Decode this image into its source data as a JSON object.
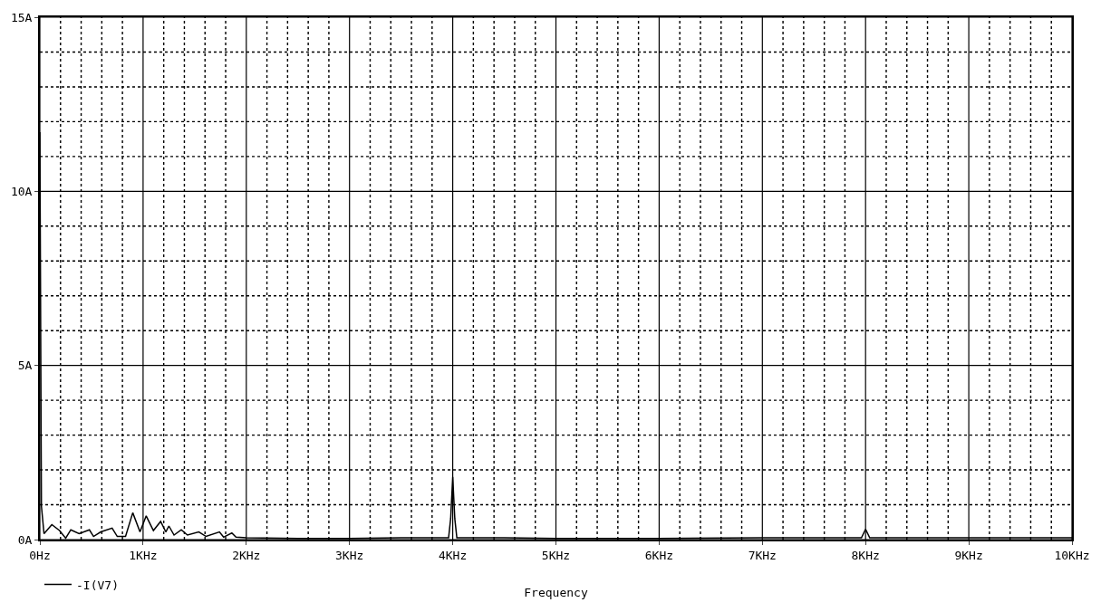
{
  "chart_data": {
    "type": "line",
    "xlabel": "Frequency",
    "xlim": [
      0,
      10
    ],
    "ylim": [
      0,
      15
    ],
    "xticks": [
      {
        "value": 0,
        "label": "0Hz"
      },
      {
        "value": 0.2,
        "label": null
      },
      {
        "value": 0.4,
        "label": null
      },
      {
        "value": 0.6,
        "label": null
      },
      {
        "value": 0.8,
        "label": null
      },
      {
        "value": 1,
        "label": "1KHz"
      },
      {
        "value": 1.2,
        "label": null
      },
      {
        "value": 1.4,
        "label": null
      },
      {
        "value": 1.6,
        "label": null
      },
      {
        "value": 1.8,
        "label": null
      },
      {
        "value": 2,
        "label": "2KHz"
      },
      {
        "value": 2.2,
        "label": null
      },
      {
        "value": 2.4,
        "label": null
      },
      {
        "value": 2.6,
        "label": null
      },
      {
        "value": 2.8,
        "label": null
      },
      {
        "value": 3,
        "label": "3KHz"
      },
      {
        "value": 3.2,
        "label": null
      },
      {
        "value": 3.4,
        "label": null
      },
      {
        "value": 3.6,
        "label": null
      },
      {
        "value": 3.8,
        "label": null
      },
      {
        "value": 4,
        "label": "4KHz"
      },
      {
        "value": 4.2,
        "label": null
      },
      {
        "value": 4.4,
        "label": null
      },
      {
        "value": 4.6,
        "label": null
      },
      {
        "value": 4.8,
        "label": null
      },
      {
        "value": 5,
        "label": "5KHz"
      },
      {
        "value": 5.2,
        "label": null
      },
      {
        "value": 5.4,
        "label": null
      },
      {
        "value": 5.6,
        "label": null
      },
      {
        "value": 5.8,
        "label": null
      },
      {
        "value": 6,
        "label": "6KHz"
      },
      {
        "value": 6.2,
        "label": null
      },
      {
        "value": 6.4,
        "label": null
      },
      {
        "value": 6.6,
        "label": null
      },
      {
        "value": 6.8,
        "label": null
      },
      {
        "value": 7,
        "label": "7KHz"
      },
      {
        "value": 7.2,
        "label": null
      },
      {
        "value": 7.4,
        "label": null
      },
      {
        "value": 7.6,
        "label": null
      },
      {
        "value": 7.8,
        "label": null
      },
      {
        "value": 8,
        "label": "8KHz"
      },
      {
        "value": 8.2,
        "label": null
      },
      {
        "value": 8.4,
        "label": null
      },
      {
        "value": 8.6,
        "label": null
      },
      {
        "value": 8.8,
        "label": null
      },
      {
        "value": 9,
        "label": "9KHz"
      },
      {
        "value": 9.2,
        "label": null
      },
      {
        "value": 9.4,
        "label": null
      },
      {
        "value": 9.6,
        "label": null
      },
      {
        "value": 9.8,
        "label": null
      },
      {
        "value": 10,
        "label": "10KHz"
      }
    ],
    "yticks": [
      {
        "value": 0,
        "label": "0A"
      },
      {
        "value": 1,
        "label": null
      },
      {
        "value": 2,
        "label": null
      },
      {
        "value": 3,
        "label": null
      },
      {
        "value": 4,
        "label": null
      },
      {
        "value": 5,
        "label": "5A"
      },
      {
        "value": 6,
        "label": null
      },
      {
        "value": 7,
        "label": null
      },
      {
        "value": 8,
        "label": null
      },
      {
        "value": 9,
        "label": null
      },
      {
        "value": 10,
        "label": "10A"
      },
      {
        "value": 11,
        "label": null
      },
      {
        "value": 12,
        "label": null
      },
      {
        "value": 13,
        "label": null
      },
      {
        "value": 14,
        "label": null
      },
      {
        "value": 15,
        "label": "15A"
      }
    ],
    "grid": true,
    "legend": "bottom left",
    "marker": "none",
    "line_style": "solid",
    "series": [
      {
        "name": "-I(V7)",
        "color": "#000000",
        "x": [
          0,
          0.015,
          0.04,
          0.116,
          0.19,
          0.25,
          0.3,
          0.38,
          0.48,
          0.52,
          0.59,
          0.7,
          0.75,
          0.83,
          0.9,
          0.97,
          1.03,
          1.1,
          1.17,
          1.22,
          1.25,
          1.3,
          1.37,
          1.43,
          1.54,
          1.61,
          1.74,
          1.78,
          1.86,
          1.9,
          2.0,
          2.5,
          3.0,
          3.5,
          3.96,
          3.98,
          4.0,
          4.02,
          4.04,
          4.5,
          5.0,
          6.0,
          7.0,
          7.96,
          8.0,
          8.04,
          9.0,
          10.0
        ],
        "values": [
          11.7,
          0.96,
          0.17,
          0.43,
          0.26,
          0.04,
          0.28,
          0.17,
          0.28,
          0.09,
          0.22,
          0.33,
          0.09,
          0.09,
          0.77,
          0.22,
          0.68,
          0.26,
          0.52,
          0.22,
          0.39,
          0.13,
          0.28,
          0.13,
          0.22,
          0.09,
          0.22,
          0.07,
          0.19,
          0.07,
          0.05,
          0.03,
          0.03,
          0.05,
          0.05,
          0.6,
          1.8,
          0.6,
          0.05,
          0.05,
          0.03,
          0.03,
          0.05,
          0.05,
          0.3,
          0.05,
          0.05,
          0.05
        ]
      }
    ]
  }
}
